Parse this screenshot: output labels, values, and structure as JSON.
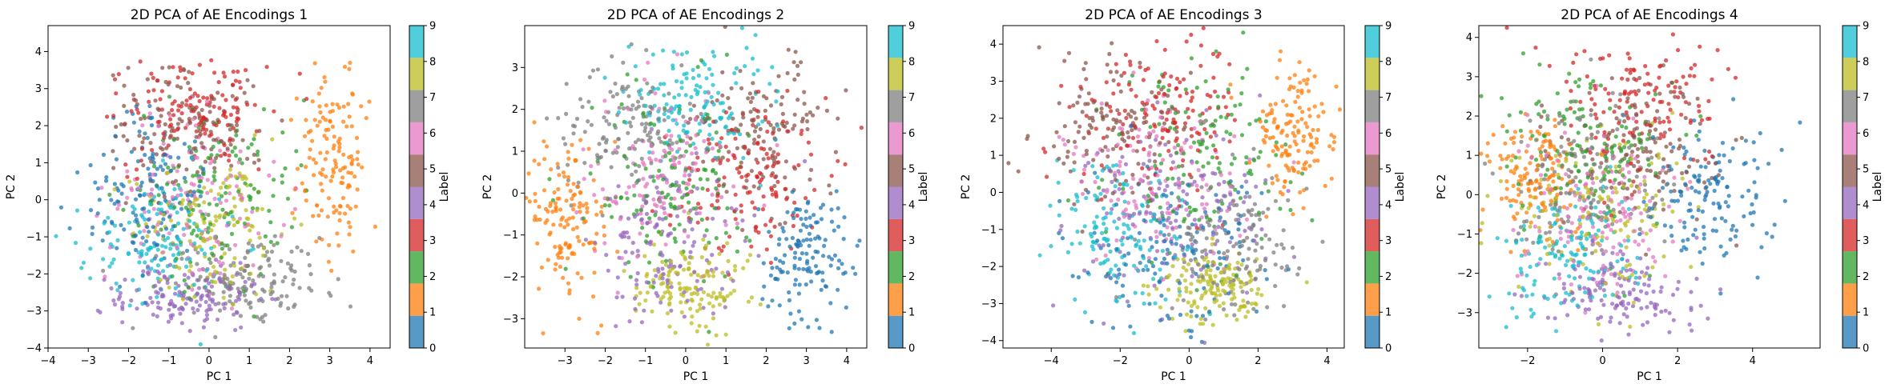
{
  "colors": {
    "0": "#1f77b4",
    "1": "#ff7f0e",
    "2": "#2ca02c",
    "3": "#d62728",
    "4": "#9467bd",
    "5": "#8c564b",
    "6": "#e377c2",
    "7": "#7f7f7f",
    "8": "#bcbd22",
    "9": "#17becf"
  },
  "colorbar": {
    "label": "Label",
    "ticks": [
      "0",
      "1",
      "2",
      "3",
      "4",
      "5",
      "6",
      "7",
      "8",
      "9"
    ]
  },
  "chart_data": [
    {
      "type": "scatter",
      "title": "2D PCA of AE Encodings 1",
      "xlabel": "PC 1",
      "ylabel": "PC 2",
      "xlim": [
        -4.0,
        4.5
      ],
      "ylim": [
        -4.0,
        4.7
      ],
      "xticks": [
        -4,
        -3,
        -2,
        -1,
        0,
        1,
        2,
        3,
        4
      ],
      "yticks": [
        -4,
        -3,
        -2,
        -1,
        0,
        1,
        2,
        3,
        4
      ],
      "clusters": [
        {
          "label": 0,
          "cx": -1.6,
          "cy": 0.1,
          "sx": 0.75,
          "sy": 1.05
        },
        {
          "label": 1,
          "cx": 3.1,
          "cy": 0.8,
          "sx": 0.45,
          "sy": 1.2
        },
        {
          "label": 2,
          "cx": 0.2,
          "cy": 0.3,
          "sx": 1.0,
          "sy": 1.2
        },
        {
          "label": 3,
          "cx": -0.3,
          "cy": 2.4,
          "sx": 0.85,
          "sy": 0.75
        },
        {
          "label": 4,
          "cx": -0.5,
          "cy": -2.6,
          "sx": 0.9,
          "sy": 0.45
        },
        {
          "label": 5,
          "cx": -0.5,
          "cy": 2.0,
          "sx": 1.0,
          "sy": 0.9
        },
        {
          "label": 6,
          "cx": -0.3,
          "cy": 0.0,
          "sx": 1.1,
          "sy": 1.1
        },
        {
          "label": 7,
          "cx": 1.0,
          "cy": -2.2,
          "sx": 0.9,
          "sy": 0.6
        },
        {
          "label": 8,
          "cx": 0.2,
          "cy": -0.7,
          "sx": 1.0,
          "sy": 1.0
        },
        {
          "label": 9,
          "cx": -1.3,
          "cy": -1.2,
          "sx": 0.8,
          "sy": 0.9
        }
      ]
    },
    {
      "type": "scatter",
      "title": "2D PCA of AE Encodings 2",
      "xlabel": "PC 1",
      "ylabel": "PC 2",
      "xlim": [
        -4.0,
        4.5
      ],
      "ylim": [
        -3.7,
        4.0
      ],
      "xticks": [
        -3,
        -2,
        -1,
        0,
        1,
        2,
        3,
        4
      ],
      "yticks": [
        -3,
        -2,
        -1,
        0,
        1,
        2,
        3
      ],
      "clusters": [
        {
          "label": 0,
          "cx": 3.0,
          "cy": -1.5,
          "sx": 0.55,
          "sy": 0.7
        },
        {
          "label": 1,
          "cx": -2.9,
          "cy": -0.7,
          "sx": 0.55,
          "sy": 1.0
        },
        {
          "label": 2,
          "cx": -0.3,
          "cy": 0.1,
          "sx": 1.0,
          "sy": 1.1
        },
        {
          "label": 3,
          "cx": 1.5,
          "cy": 0.4,
          "sx": 1.0,
          "sy": 1.0
        },
        {
          "label": 4,
          "cx": -0.3,
          "cy": -1.2,
          "sx": 0.9,
          "sy": 0.9
        },
        {
          "label": 5,
          "cx": 2.0,
          "cy": 1.5,
          "sx": 0.9,
          "sy": 0.9
        },
        {
          "label": 6,
          "cx": -0.5,
          "cy": 0.5,
          "sx": 1.0,
          "sy": 1.1
        },
        {
          "label": 7,
          "cx": -1.5,
          "cy": 1.5,
          "sx": 0.9,
          "sy": 0.8
        },
        {
          "label": 8,
          "cx": 0.0,
          "cy": -2.2,
          "sx": 0.8,
          "sy": 0.6
        },
        {
          "label": 9,
          "cx": 0.2,
          "cy": 2.2,
          "sx": 0.8,
          "sy": 0.7
        }
      ]
    },
    {
      "type": "scatter",
      "title": "2D PCA of AE Encodings 3",
      "xlabel": "PC 1",
      "ylabel": "PC 2",
      "xlim": [
        -5.4,
        4.5
      ],
      "ylim": [
        -4.2,
        4.5
      ],
      "xticks": [
        -4,
        -2,
        0,
        2,
        4
      ],
      "yticks": [
        -4,
        -3,
        -2,
        -1,
        0,
        1,
        2,
        3,
        4
      ],
      "clusters": [
        {
          "label": 0,
          "cx": -0.5,
          "cy": -1.5,
          "sx": 1.3,
          "sy": 1.1
        },
        {
          "label": 1,
          "cx": 3.0,
          "cy": 1.5,
          "sx": 0.6,
          "sy": 0.85
        },
        {
          "label": 2,
          "cx": 0.5,
          "cy": 1.0,
          "sx": 1.2,
          "sy": 1.3
        },
        {
          "label": 3,
          "cx": -1.0,
          "cy": 2.2,
          "sx": 1.2,
          "sy": 0.9
        },
        {
          "label": 4,
          "cx": -0.5,
          "cy": -0.5,
          "sx": 1.4,
          "sy": 1.1
        },
        {
          "label": 5,
          "cx": -2.2,
          "cy": 1.6,
          "sx": 1.1,
          "sy": 1.0
        },
        {
          "label": 6,
          "cx": -0.8,
          "cy": 0.2,
          "sx": 1.3,
          "sy": 1.1
        },
        {
          "label": 7,
          "cx": 1.5,
          "cy": -1.5,
          "sx": 1.0,
          "sy": 0.9
        },
        {
          "label": 8,
          "cx": 0.8,
          "cy": -2.6,
          "sx": 0.8,
          "sy": 0.5
        },
        {
          "label": 9,
          "cx": -2.0,
          "cy": -1.2,
          "sx": 1.0,
          "sy": 1.0
        }
      ]
    },
    {
      "type": "scatter",
      "title": "2D PCA of AE Encodings 4",
      "xlabel": "PC 1",
      "ylabel": "PC 2",
      "xlim": [
        -3.3,
        5.8
      ],
      "ylim": [
        -3.9,
        4.3
      ],
      "xticks": [
        -2,
        0,
        2,
        4
      ],
      "yticks": [
        -3,
        -2,
        -1,
        0,
        1,
        2,
        3,
        4
      ],
      "clusters": [
        {
          "label": 0,
          "cx": 2.8,
          "cy": 0.0,
          "sx": 0.9,
          "sy": 1.0
        },
        {
          "label": 1,
          "cx": -1.8,
          "cy": 0.5,
          "sx": 0.6,
          "sy": 0.7
        },
        {
          "label": 2,
          "cx": -0.5,
          "cy": 1.2,
          "sx": 1.1,
          "sy": 1.1
        },
        {
          "label": 3,
          "cx": 1.0,
          "cy": 2.3,
          "sx": 1.1,
          "sy": 0.9
        },
        {
          "label": 4,
          "cx": 0.5,
          "cy": -2.4,
          "sx": 1.0,
          "sy": 0.6
        },
        {
          "label": 5,
          "cx": 1.0,
          "cy": 1.2,
          "sx": 1.1,
          "sy": 1.0
        },
        {
          "label": 6,
          "cx": 0.0,
          "cy": -0.3,
          "sx": 1.1,
          "sy": 1.0
        },
        {
          "label": 7,
          "cx": -0.5,
          "cy": 0.5,
          "sx": 1.0,
          "sy": 1.0
        },
        {
          "label": 8,
          "cx": 0.0,
          "cy": -0.5,
          "sx": 1.1,
          "sy": 1.0
        },
        {
          "label": 9,
          "cx": -1.0,
          "cy": -1.5,
          "sx": 0.9,
          "sy": 0.8
        }
      ]
    }
  ]
}
